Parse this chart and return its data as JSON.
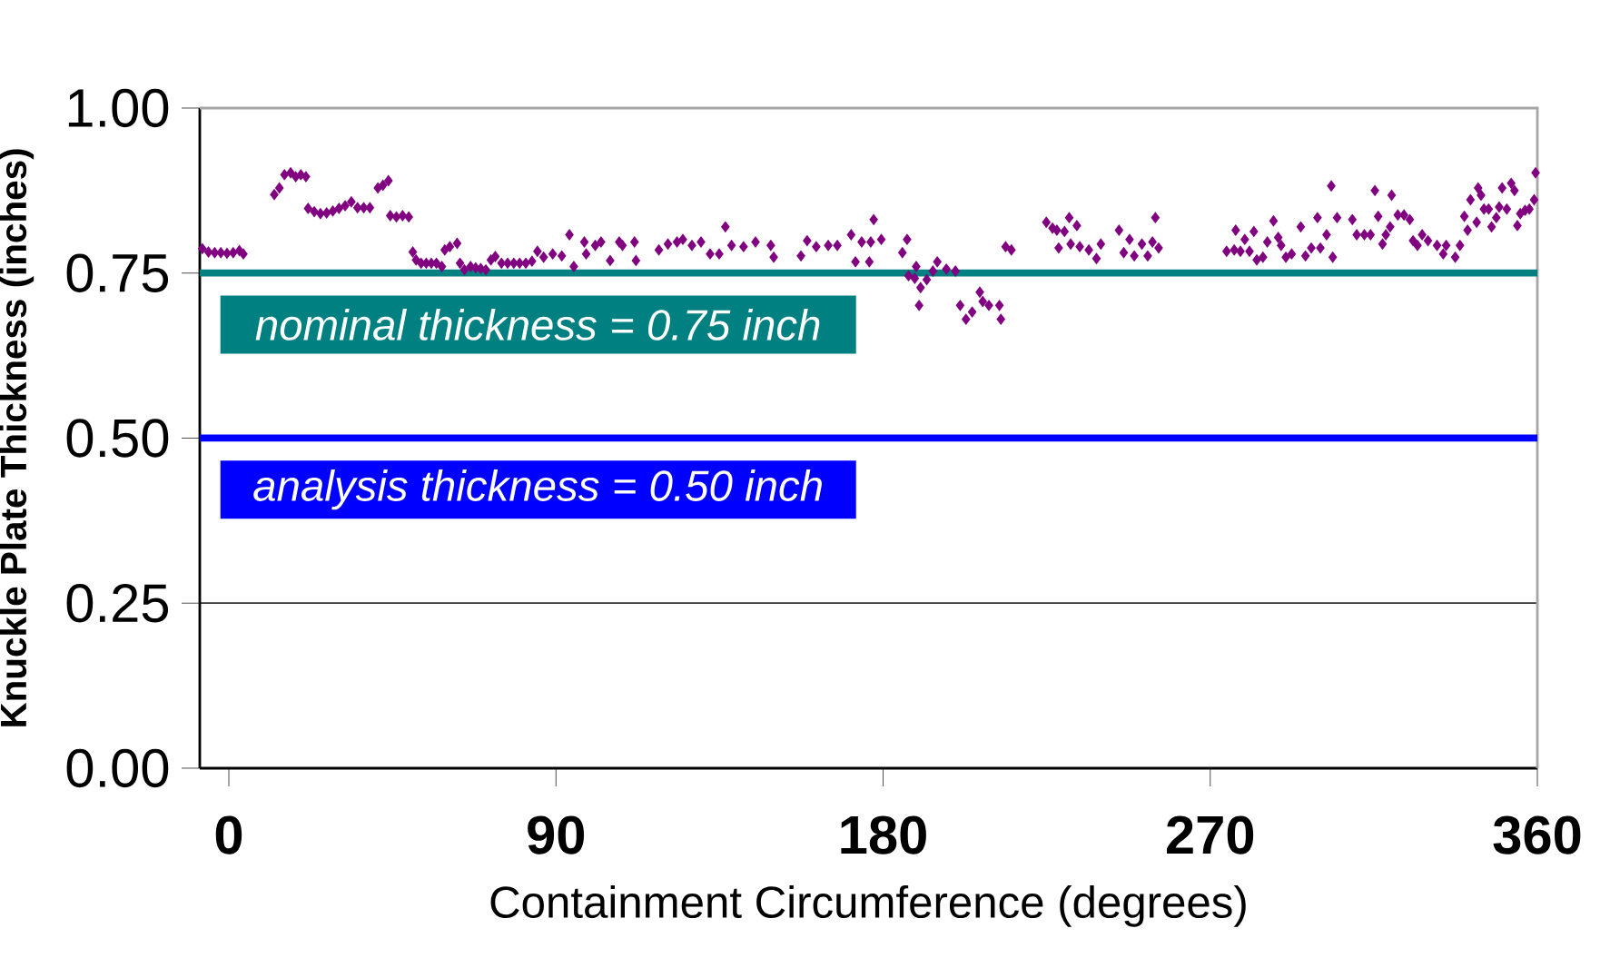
{
  "chart_data": {
    "type": "scatter",
    "xlabel": "Containment Circumference (degrees)",
    "ylabel": "Knuckle Plate Thickness (inches)",
    "xlim": [
      -8,
      360
    ],
    "xticks": [
      0,
      90,
      180,
      270,
      360
    ],
    "ylim": [
      0,
      1
    ],
    "yticks": [
      {
        "value": 0,
        "label": "0.00"
      },
      {
        "value": 0.25,
        "label": "0.25"
      },
      {
        "value": 0.5,
        "label": "0.50"
      },
      {
        "value": 0.75,
        "label": "0.75"
      },
      {
        "value": 1,
        "label": "1.00"
      }
    ],
    "grid": "y",
    "marker": "diamond",
    "ref_lines": [
      {
        "axis": "y",
        "value": 0.75,
        "label": "nominal thickness = 0.75 inch",
        "color": "#008080"
      },
      {
        "axis": "y",
        "value": 0.5,
        "label": "analysis thickness = 0.50 inch",
        "color": "#0000ff"
      }
    ],
    "series": [
      {
        "color": "#800080",
        "x": [
          -7.3,
          -5.6,
          -3.9,
          -2.2,
          -0.5,
          1.2,
          2.9,
          4.0,
          12.5,
          13.9,
          15.3,
          17.0,
          18.4,
          19.8,
          21.2,
          21.8,
          23.5,
          25.2,
          26.9,
          28.6,
          30.3,
          32.0,
          33.7,
          35.4,
          37.1,
          38.8,
          41.0,
          42.4,
          43.9,
          44.4,
          46.1,
          47.8,
          49.5,
          50.6,
          51.5,
          52.9,
          54.3,
          55.7,
          57.1,
          58.6,
          59.4,
          60.8,
          62.8,
          63.6,
          64.8,
          66.5,
          67.9,
          69.3,
          70.7,
          72.1,
          73.3,
          75.0,
          76.7,
          78.4,
          80.0,
          81.7,
          83.4,
          84.9,
          86.6,
          89.1,
          91.6,
          93.7,
          94.9,
          97.8,
          98.3,
          100.8,
          102.4,
          104.9,
          107.4,
          108.3,
          111.6,
          112.0,
          118.3,
          120.8,
          123.3,
          124.9,
          127.4,
          129.9,
          132.4,
          134.9,
          136.6,
          138.3,
          141.6,
          144.9,
          149.1,
          149.9,
          157.4,
          159.1,
          161.6,
          164.9,
          167.4,
          171.2,
          172.4,
          174.1,
          176.2,
          176.6,
          177.4,
          179.5,
          185.3,
          186.6,
          187.0,
          188.7,
          189.1,
          189.9,
          190.3,
          192.0,
          193.7,
          194.9,
          197.4,
          199.9,
          201.2,
          202.8,
          204.5,
          206.6,
          207.4,
          209.1,
          212.0,
          212.4,
          213.7,
          215.3,
          224.9,
          226.6,
          227.8,
          228.3,
          229.9,
          231.2,
          231.6,
          233.3,
          234.1,
          236.6,
          238.7,
          239.9,
          244.9,
          246.2,
          247.8,
          249.1,
          251.2,
          252.8,
          254.1,
          254.9,
          255.8,
          274.5,
          276.6,
          277.0,
          278.3,
          279.5,
          280.8,
          282.0,
          282.8,
          284.5,
          285.7,
          287.4,
          288.7,
          289.5,
          290.8,
          292.4,
          294.9,
          296.2,
          297.8,
          299.5,
          300.3,
          302.0,
          303.3,
          303.7,
          304.9,
          309.1,
          310.3,
          312.4,
          314.1,
          315.3,
          316.2,
          317.4,
          318.3,
          319.5,
          319.9,
          321.6,
          323.3,
          324.9,
          325.8,
          327.0,
          328.3,
          329.9,
          332.4,
          334.1,
          334.9,
          337.4,
          338.7,
          339.9,
          340.8,
          341.6,
          343.3,
          343.7,
          344.5,
          345.3,
          346.6,
          347.4,
          348.7,
          349.5,
          350.3,
          351.6,
          352.8,
          353.7,
          354.5,
          355.3,
          356.6,
          357.8,
          359.1,
          359.5
        ],
        "values": [
          0.787,
          0.782,
          0.781,
          0.781,
          0.78,
          0.781,
          0.784,
          0.779,
          0.869,
          0.879,
          0.899,
          0.902,
          0.896,
          0.899,
          0.896,
          0.848,
          0.843,
          0.84,
          0.841,
          0.844,
          0.848,
          0.852,
          0.858,
          0.849,
          0.849,
          0.849,
          0.879,
          0.883,
          0.89,
          0.837,
          0.835,
          0.837,
          0.835,
          0.782,
          0.77,
          0.765,
          0.765,
          0.765,
          0.765,
          0.76,
          0.785,
          0.79,
          0.795,
          0.765,
          0.755,
          0.76,
          0.758,
          0.757,
          0.755,
          0.77,
          0.775,
          0.765,
          0.765,
          0.765,
          0.765,
          0.765,
          0.768,
          0.783,
          0.774,
          0.779,
          0.776,
          0.808,
          0.76,
          0.797,
          0.779,
          0.792,
          0.797,
          0.769,
          0.797,
          0.792,
          0.797,
          0.769,
          0.785,
          0.794,
          0.797,
          0.801,
          0.792,
          0.797,
          0.779,
          0.779,
          0.82,
          0.792,
          0.79,
          0.797,
          0.792,
          0.774,
          0.776,
          0.799,
          0.79,
          0.792,
          0.792,
          0.808,
          0.767,
          0.797,
          0.767,
          0.797,
          0.831,
          0.801,
          0.781,
          0.801,
          0.746,
          0.742,
          0.76,
          0.701,
          0.728,
          0.74,
          0.753,
          0.767,
          0.756,
          0.753,
          0.701,
          0.68,
          0.691,
          0.721,
          0.707,
          0.701,
          0.701,
          0.68,
          0.79,
          0.785,
          0.827,
          0.818,
          0.815,
          0.788,
          0.813,
          0.834,
          0.794,
          0.822,
          0.79,
          0.785,
          0.772,
          0.794,
          0.815,
          0.781,
          0.801,
          0.776,
          0.794,
          0.776,
          0.797,
          0.834,
          0.788,
          0.783,
          0.785,
          0.815,
          0.783,
          0.801,
          0.783,
          0.813,
          0.77,
          0.774,
          0.797,
          0.829,
          0.804,
          0.792,
          0.774,
          0.779,
          0.82,
          0.776,
          0.788,
          0.834,
          0.788,
          0.808,
          0.882,
          0.774,
          0.834,
          0.831,
          0.808,
          0.808,
          0.808,
          0.875,
          0.836,
          0.794,
          0.808,
          0.82,
          0.868,
          0.838,
          0.838,
          0.831,
          0.799,
          0.792,
          0.808,
          0.799,
          0.792,
          0.779,
          0.792,
          0.774,
          0.792,
          0.836,
          0.815,
          0.861,
          0.827,
          0.879,
          0.868,
          0.847,
          0.847,
          0.82,
          0.834,
          0.85,
          0.879,
          0.847,
          0.886,
          0.875,
          0.822,
          0.84,
          0.845,
          0.847,
          0.861,
          0.902
        ]
      }
    ]
  }
}
